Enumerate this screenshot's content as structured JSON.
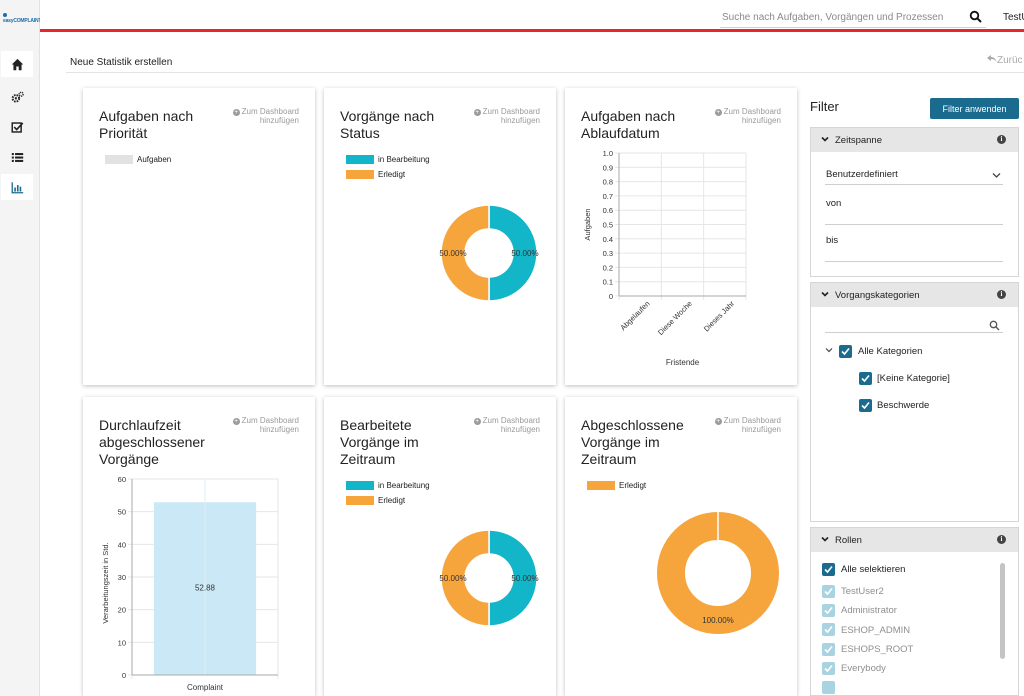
{
  "app": {
    "logo_text": "easyCOMPLAINT"
  },
  "search": {
    "placeholder": "Suche nach Aufgaben, Vorgängen und Prozessen"
  },
  "user": {
    "name": "TestU"
  },
  "page": {
    "title": "Neue Statistik erstellen",
    "back_label": "Zurüc"
  },
  "sidebar": {
    "items": [
      {
        "icon": "home-icon"
      },
      {
        "icon": "gears-icon"
      },
      {
        "icon": "task-check-icon"
      },
      {
        "icon": "list-icon"
      },
      {
        "icon": "bar-chart-icon"
      }
    ]
  },
  "add_label": "Zum Dashboard hinzufügen",
  "colors": {
    "teal": "#13b5c9",
    "orange": "#f6a53d",
    "light_gray": "#e2e2e2",
    "light_blue": "#cbe8f6",
    "accent_red": "#e8262e",
    "primary": "#1a6b8e"
  },
  "cards": [
    {
      "title": "Aufgaben nach Priorität",
      "chart_data": {
        "type": "bar",
        "series": [
          {
            "name": "Aufgaben",
            "values": []
          }
        ],
        "categories": []
      }
    },
    {
      "title": "Vorgänge nach Status",
      "chart_data": {
        "type": "pie",
        "series": [
          {
            "name": "in Bearbeitung",
            "value": 50.0,
            "label": "50.00%"
          },
          {
            "name": "Erledigt",
            "value": 50.0,
            "label": "50.00%"
          }
        ]
      }
    },
    {
      "title": "Aufgaben nach Ablaufdatum",
      "chart_data": {
        "type": "bar",
        "categories": [
          "Abgelaufen",
          "Diese Woche",
          "Dieses Jahr"
        ],
        "values": [
          0,
          0,
          0
        ],
        "xlabel": "Fristende",
        "ylabel": "Aufgaben",
        "ylim": [
          0,
          1.0
        ],
        "yticks": [
          "0",
          "0.1",
          "0.2",
          "0.3",
          "0.4",
          "0.5",
          "0.6",
          "0.7",
          "0.8",
          "0.9",
          "1.0"
        ]
      }
    },
    {
      "title": "Durchlaufzeit abgeschlossener Vorgänge",
      "chart_data": {
        "type": "bar",
        "categories": [
          "Complaint"
        ],
        "values": [
          52.88
        ],
        "value_labels": [
          "52.88"
        ],
        "ylabel": "Verarbeitungszeit in Std.",
        "ylim": [
          0,
          60
        ],
        "yticks": [
          "0",
          "10",
          "20",
          "30",
          "40",
          "50",
          "60"
        ]
      }
    },
    {
      "title": "Bearbeitete Vorgänge im Zeitraum",
      "chart_data": {
        "type": "pie",
        "series": [
          {
            "name": "in Bearbeitung",
            "value": 50.0,
            "label": "50.00%"
          },
          {
            "name": "Erledigt",
            "value": 50.0,
            "label": "50.00%"
          }
        ]
      }
    },
    {
      "title": "Abgeschlossene Vorgänge im Zeitraum",
      "chart_data": {
        "type": "pie",
        "series": [
          {
            "name": "Erledigt",
            "value": 100.0,
            "label": "100.00%"
          }
        ]
      }
    }
  ],
  "filter": {
    "title": "Filter",
    "apply_label": "Filter anwenden",
    "zeitspanne": {
      "label": "Zeitspanne",
      "select_value": "Benutzerdefiniert",
      "from_label": "von",
      "to_label": "bis"
    },
    "vorgangskategorien": {
      "label": "Vorgangskategorien",
      "search_placeholder": "",
      "all_label": "Alle Kategorien",
      "items": [
        {
          "label": "[Keine Kategorie]",
          "checked": true
        },
        {
          "label": "Beschwerde",
          "checked": true
        }
      ]
    },
    "rollen": {
      "label": "Rollen",
      "select_all_label": "Alle selektieren",
      "items": [
        {
          "label": "TestUser2"
        },
        {
          "label": "Administrator"
        },
        {
          "label": "ESHOP_ADMIN"
        },
        {
          "label": "ESHOPS_ROOT"
        },
        {
          "label": "Everybody"
        }
      ]
    }
  }
}
